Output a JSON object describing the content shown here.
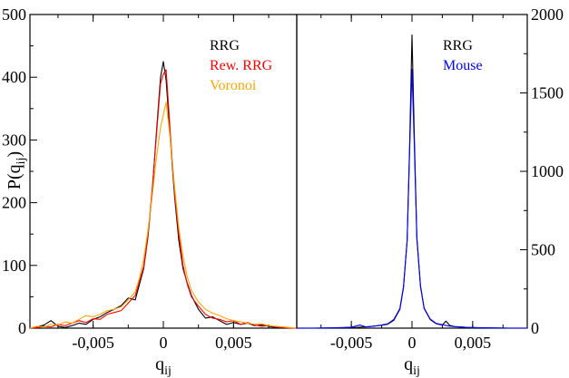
{
  "chart_data": [
    {
      "type": "line",
      "panel": "left",
      "xlabel": "q",
      "xlabel_sub": "ij",
      "ylabel": "P(q",
      "ylabel_sub": "ij",
      "ylabel_suffix": ")",
      "xlim": [
        -0.0095,
        0.0095
      ],
      "ylim": [
        0,
        500
      ],
      "xticks": [
        -0.005,
        0,
        0.005
      ],
      "xtick_labels": [
        "-0,005",
        "0",
        "0,005"
      ],
      "yticks": [
        0,
        100,
        200,
        300,
        400,
        500
      ],
      "ytick_labels": [
        "0",
        "100",
        "200",
        "300",
        "400",
        "500"
      ],
      "y_axis_side": "left",
      "legend_placement": "upper-right, inside",
      "series": [
        {
          "name": "RRG",
          "color": "#000000",
          "points": [
            [
              -0.0095,
              0
            ],
            [
              -0.009,
              2
            ],
            [
              -0.0085,
              5
            ],
            [
              -0.008,
              12
            ],
            [
              -0.0075,
              3
            ],
            [
              -0.007,
              1
            ],
            [
              -0.0065,
              4
            ],
            [
              -0.006,
              8
            ],
            [
              -0.0055,
              6
            ],
            [
              -0.005,
              14
            ],
            [
              -0.0045,
              18
            ],
            [
              -0.004,
              25
            ],
            [
              -0.0035,
              30
            ],
            [
              -0.003,
              36
            ],
            [
              -0.0025,
              48
            ],
            [
              -0.002,
              45
            ],
            [
              -0.0017,
              70
            ],
            [
              -0.0014,
              95
            ],
            [
              -0.0011,
              145
            ],
            [
              -0.0008,
              215
            ],
            [
              -0.0005,
              310
            ],
            [
              -0.0002,
              400
            ],
            [
              0,
              425
            ],
            [
              0.0002,
              395
            ],
            [
              0.0005,
              300
            ],
            [
              0.0008,
              210
            ],
            [
              0.0011,
              140
            ],
            [
              0.0014,
              95
            ],
            [
              0.0017,
              72
            ],
            [
              0.002,
              52
            ],
            [
              0.0025,
              30
            ],
            [
              0.003,
              16
            ],
            [
              0.0035,
              18
            ],
            [
              0.004,
              12
            ],
            [
              0.0045,
              6
            ],
            [
              0.005,
              9
            ],
            [
              0.0055,
              6
            ],
            [
              0.006,
              8
            ],
            [
              0.0065,
              4
            ],
            [
              0.007,
              5
            ],
            [
              0.0075,
              3
            ],
            [
              0.008,
              1
            ],
            [
              0.0085,
              2
            ],
            [
              0.009,
              0
            ],
            [
              0.0095,
              0
            ]
          ]
        },
        {
          "name": "Rew. RRG",
          "color": "#ff0000",
          "points": [
            [
              -0.0095,
              0
            ],
            [
              -0.009,
              1
            ],
            [
              -0.0085,
              3
            ],
            [
              -0.008,
              2
            ],
            [
              -0.0075,
              6
            ],
            [
              -0.007,
              4
            ],
            [
              -0.0065,
              8
            ],
            [
              -0.006,
              12
            ],
            [
              -0.0055,
              9
            ],
            [
              -0.005,
              15
            ],
            [
              -0.0045,
              14
            ],
            [
              -0.004,
              22
            ],
            [
              -0.0035,
              25
            ],
            [
              -0.003,
              28
            ],
            [
              -0.0025,
              40
            ],
            [
              -0.002,
              52
            ],
            [
              -0.0017,
              75
            ],
            [
              -0.0014,
              98
            ],
            [
              -0.0011,
              148
            ],
            [
              -0.0008,
              220
            ],
            [
              -0.0005,
              305
            ],
            [
              -0.0002,
              390
            ],
            [
              0,
              405
            ],
            [
              0.0002,
              412
            ],
            [
              0.0005,
              310
            ],
            [
              0.0008,
              215
            ],
            [
              0.0011,
              150
            ],
            [
              0.0014,
              100
            ],
            [
              0.0017,
              70
            ],
            [
              0.002,
              50
            ],
            [
              0.0025,
              35
            ],
            [
              0.003,
              22
            ],
            [
              0.0035,
              16
            ],
            [
              0.004,
              14
            ],
            [
              0.0045,
              10
            ],
            [
              0.005,
              12
            ],
            [
              0.0055,
              6
            ],
            [
              0.006,
              9
            ],
            [
              0.0065,
              5
            ],
            [
              0.007,
              3
            ],
            [
              0.0075,
              4
            ],
            [
              0.008,
              2
            ],
            [
              0.0085,
              1
            ],
            [
              0.009,
              0
            ],
            [
              0.0095,
              0
            ]
          ]
        },
        {
          "name": "Voronoi",
          "color": "#ffa500",
          "points": [
            [
              -0.0095,
              0
            ],
            [
              -0.009,
              3
            ],
            [
              -0.0085,
              2
            ],
            [
              -0.008,
              6
            ],
            [
              -0.0075,
              5
            ],
            [
              -0.007,
              10
            ],
            [
              -0.0065,
              8
            ],
            [
              -0.006,
              14
            ],
            [
              -0.0055,
              20
            ],
            [
              -0.005,
              18
            ],
            [
              -0.0045,
              22
            ],
            [
              -0.004,
              28
            ],
            [
              -0.0035,
              30
            ],
            [
              -0.003,
              34
            ],
            [
              -0.0025,
              45
            ],
            [
              -0.002,
              58
            ],
            [
              -0.0017,
              80
            ],
            [
              -0.0014,
              110
            ],
            [
              -0.0011,
              155
            ],
            [
              -0.0008,
              210
            ],
            [
              -0.0005,
              270
            ],
            [
              -0.0002,
              320
            ],
            [
              0,
              340
            ],
            [
              0.0002,
              360
            ],
            [
              0.0005,
              300
            ],
            [
              0.0008,
              225
            ],
            [
              0.0011,
              160
            ],
            [
              0.0014,
              115
            ],
            [
              0.0017,
              82
            ],
            [
              0.002,
              60
            ],
            [
              0.0025,
              42
            ],
            [
              0.003,
              30
            ],
            [
              0.0035,
              24
            ],
            [
              0.004,
              20
            ],
            [
              0.0045,
              15
            ],
            [
              0.005,
              12
            ],
            [
              0.0055,
              10
            ],
            [
              0.006,
              8
            ],
            [
              0.0065,
              6
            ],
            [
              0.007,
              7
            ],
            [
              0.0075,
              4
            ],
            [
              0.008,
              3
            ],
            [
              0.0085,
              2
            ],
            [
              0.009,
              1
            ],
            [
              0.0095,
              0
            ]
          ]
        }
      ]
    },
    {
      "type": "line",
      "panel": "right",
      "xlabel": "q",
      "xlabel_sub": "ij",
      "ylabel": "",
      "xlim": [
        -0.0095,
        0.0095
      ],
      "ylim": [
        0,
        2000
      ],
      "xticks": [
        -0.005,
        0,
        0.005
      ],
      "xtick_labels": [
        "-0,005",
        "0",
        "0,005"
      ],
      "yticks": [
        0,
        500,
        1000,
        1500,
        2000
      ],
      "ytick_labels": [
        "0",
        "500",
        "1000",
        "1500",
        "2000"
      ],
      "y_axis_side": "right",
      "legend_placement": "upper-right, inside",
      "series": [
        {
          "name": "RRG",
          "color": "#000000",
          "points": [
            [
              -0.0095,
              0
            ],
            [
              -0.008,
              0
            ],
            [
              -0.006,
              2
            ],
            [
              -0.0045,
              5
            ],
            [
              -0.0035,
              10
            ],
            [
              -0.0025,
              18
            ],
            [
              -0.002,
              25
            ],
            [
              -0.0015,
              50
            ],
            [
              -0.001,
              120
            ],
            [
              -0.0007,
              260
            ],
            [
              -0.0004,
              560
            ],
            [
              -0.0002,
              1150
            ],
            [
              0,
              1870
            ],
            [
              0.0002,
              1200
            ],
            [
              0.0004,
              580
            ],
            [
              0.0007,
              270
            ],
            [
              0.001,
              125
            ],
            [
              0.0015,
              55
            ],
            [
              0.002,
              28
            ],
            [
              0.0025,
              20
            ],
            [
              0.0028,
              45
            ],
            [
              0.0031,
              18
            ],
            [
              0.0035,
              10
            ],
            [
              0.0045,
              5
            ],
            [
              0.006,
              2
            ],
            [
              0.008,
              0
            ],
            [
              0.0095,
              0
            ]
          ]
        },
        {
          "name": "Mouse",
          "color": "#0000ff",
          "points": [
            [
              -0.0095,
              0
            ],
            [
              -0.008,
              0
            ],
            [
              -0.006,
              3
            ],
            [
              -0.005,
              6
            ],
            [
              -0.0043,
              20
            ],
            [
              -0.0038,
              8
            ],
            [
              -0.003,
              14
            ],
            [
              -0.0025,
              20
            ],
            [
              -0.002,
              28
            ],
            [
              -0.0015,
              55
            ],
            [
              -0.001,
              125
            ],
            [
              -0.0007,
              265
            ],
            [
              -0.0004,
              560
            ],
            [
              -0.0002,
              1120
            ],
            [
              0,
              1650
            ],
            [
              0.0002,
              1140
            ],
            [
              0.0004,
              570
            ],
            [
              0.0007,
              265
            ],
            [
              0.001,
              128
            ],
            [
              0.0015,
              58
            ],
            [
              0.002,
              30
            ],
            [
              0.0025,
              22
            ],
            [
              0.003,
              14
            ],
            [
              0.0035,
              10
            ],
            [
              0.0045,
              5
            ],
            [
              0.006,
              2
            ],
            [
              0.008,
              0
            ],
            [
              0.0095,
              0
            ]
          ]
        }
      ]
    }
  ]
}
